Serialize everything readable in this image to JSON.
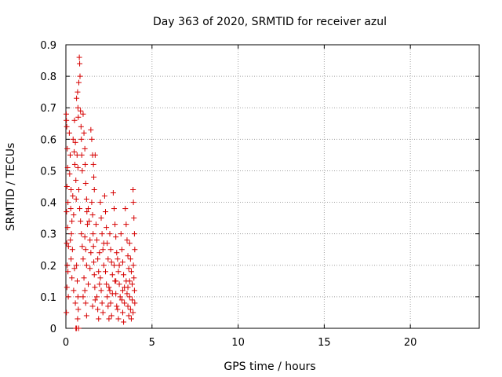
{
  "chart_data": {
    "type": "scatter",
    "title": "Day 363 of 2020, SRMTID for receiver azul",
    "xlabel": "GPS time / hours",
    "ylabel": "SRMTID / TECUs",
    "xlim": [
      0,
      24
    ],
    "ylim": [
      0,
      0.9
    ],
    "xticks": [
      0,
      5,
      10,
      15,
      20
    ],
    "yticks": [
      0,
      0.1,
      0.2,
      0.3,
      0.4,
      0.5,
      0.6,
      0.7,
      0.8,
      0.9
    ],
    "xtick_labels": [
      "0",
      "5",
      "10",
      "15",
      "20"
    ],
    "ytick_labels": [
      "0",
      "0.1",
      "0.2",
      "0.3",
      "0.4",
      "0.5",
      "0.6",
      "0.7",
      "0.8",
      "0.9"
    ],
    "grid": true,
    "marker": "+",
    "color": "#d60000",
    "points": [
      [
        0.02,
        0.68
      ],
      [
        0.03,
        0.66
      ],
      [
        0.05,
        0.64
      ],
      [
        0.08,
        0.57
      ],
      [
        0.1,
        0.51
      ],
      [
        0.06,
        0.45
      ],
      [
        0.12,
        0.4
      ],
      [
        0.04,
        0.37
      ],
      [
        0.1,
        0.32
      ],
      [
        0.05,
        0.27
      ],
      [
        0.15,
        0.26
      ],
      [
        0.08,
        0.2
      ],
      [
        0.12,
        0.18
      ],
      [
        0.06,
        0.13
      ],
      [
        0.14,
        0.1
      ],
      [
        0.03,
        0.05
      ],
      [
        0.2,
        0.62
      ],
      [
        0.25,
        0.55
      ],
      [
        0.22,
        0.49
      ],
      [
        0.3,
        0.44
      ],
      [
        0.28,
        0.38
      ],
      [
        0.35,
        0.34
      ],
      [
        0.32,
        0.3
      ],
      [
        0.26,
        0.28
      ],
      [
        0.38,
        0.25
      ],
      [
        0.3,
        0.22
      ],
      [
        0.4,
        0.42
      ],
      [
        0.45,
        0.36
      ],
      [
        0.42,
        0.6
      ],
      [
        0.48,
        0.56
      ],
      [
        0.5,
        0.66
      ],
      [
        0.55,
        0.59
      ],
      [
        0.52,
        0.52
      ],
      [
        0.58,
        0.47
      ],
      [
        0.6,
        0.41
      ],
      [
        0.62,
        0.73
      ],
      [
        0.68,
        0.75
      ],
      [
        0.7,
        0.7
      ],
      [
        0.72,
        0.67
      ],
      [
        0.75,
        0.78
      ],
      [
        0.78,
        0.86
      ],
      [
        0.8,
        0.84
      ],
      [
        0.82,
        0.8
      ],
      [
        0.85,
        0.69
      ],
      [
        0.88,
        0.64
      ],
      [
        0.9,
        0.6
      ],
      [
        0.92,
        0.55
      ],
      [
        0.95,
        0.5
      ],
      [
        0.65,
        0.55
      ],
      [
        0.7,
        0.51
      ],
      [
        0.75,
        0.44
      ],
      [
        0.8,
        0.38
      ],
      [
        0.85,
        0.34
      ],
      [
        0.9,
        0.3
      ],
      [
        0.95,
        0.26
      ],
      [
        1.0,
        0.22
      ],
      [
        0.62,
        0.2
      ],
      [
        0.66,
        0.15
      ],
      [
        0.7,
        0.1
      ],
      [
        0.72,
        0.06
      ],
      [
        0.68,
        0.03
      ],
      [
        0.58,
        0.0
      ],
      [
        0.62,
        0.0
      ],
      [
        0.74,
        0.0
      ],
      [
        1.0,
        0.68
      ],
      [
        1.05,
        0.62
      ],
      [
        1.1,
        0.57
      ],
      [
        1.12,
        0.52
      ],
      [
        1.15,
        0.46
      ],
      [
        1.2,
        0.41
      ],
      [
        1.22,
        0.37
      ],
      [
        1.25,
        0.33
      ],
      [
        1.1,
        0.29
      ],
      [
        1.15,
        0.25
      ],
      [
        1.2,
        0.2
      ],
      [
        1.05,
        0.16
      ],
      [
        1.1,
        0.12
      ],
      [
        1.15,
        0.08
      ],
      [
        1.2,
        0.04
      ],
      [
        1.0,
        0.1
      ],
      [
        1.3,
        0.38
      ],
      [
        1.35,
        0.34
      ],
      [
        1.4,
        0.28
      ],
      [
        1.45,
        0.24
      ],
      [
        1.5,
        0.6
      ],
      [
        1.55,
        0.55
      ],
      [
        1.6,
        0.52
      ],
      [
        1.62,
        0.48
      ],
      [
        1.65,
        0.44
      ],
      [
        1.5,
        0.4
      ],
      [
        1.55,
        0.36
      ],
      [
        1.58,
        0.3
      ],
      [
        1.6,
        0.26
      ],
      [
        1.62,
        0.21
      ],
      [
        1.65,
        0.17
      ],
      [
        1.68,
        0.13
      ],
      [
        1.7,
        0.09
      ],
      [
        1.55,
        0.07
      ],
      [
        1.45,
        0.63
      ],
      [
        1.7,
        0.55
      ],
      [
        1.75,
        0.33
      ],
      [
        1.8,
        0.28
      ],
      [
        1.85,
        0.22
      ],
      [
        1.9,
        0.18
      ],
      [
        1.95,
        0.14
      ],
      [
        1.8,
        0.1
      ],
      [
        1.85,
        0.06
      ],
      [
        1.9,
        0.03
      ],
      [
        2.0,
        0.4
      ],
      [
        2.05,
        0.35
      ],
      [
        2.1,
        0.3
      ],
      [
        2.15,
        0.25
      ],
      [
        2.2,
        0.2
      ],
      [
        2.0,
        0.16
      ],
      [
        2.05,
        0.12
      ],
      [
        2.1,
        0.08
      ],
      [
        2.15,
        0.05
      ],
      [
        2.25,
        0.42
      ],
      [
        2.3,
        0.37
      ],
      [
        2.35,
        0.32
      ],
      [
        2.4,
        0.27
      ],
      [
        2.45,
        0.22
      ],
      [
        2.3,
        0.18
      ],
      [
        2.35,
        0.14
      ],
      [
        2.4,
        0.1
      ],
      [
        2.45,
        0.07
      ],
      [
        2.5,
        0.03
      ],
      [
        2.55,
        0.3
      ],
      [
        2.6,
        0.25
      ],
      [
        2.65,
        0.21
      ],
      [
        2.7,
        0.17
      ],
      [
        2.55,
        0.12
      ],
      [
        2.6,
        0.08
      ],
      [
        2.65,
        0.04
      ],
      [
        2.75,
        0.43
      ],
      [
        2.8,
        0.38
      ],
      [
        2.85,
        0.33
      ],
      [
        2.9,
        0.29
      ],
      [
        2.95,
        0.24
      ],
      [
        2.8,
        0.2
      ],
      [
        2.85,
        0.15
      ],
      [
        2.9,
        0.11
      ],
      [
        2.95,
        0.07
      ],
      [
        3.0,
        0.22
      ],
      [
        3.05,
        0.18
      ],
      [
        3.1,
        0.14
      ],
      [
        3.15,
        0.1
      ],
      [
        3.0,
        0.06
      ],
      [
        3.05,
        0.03
      ],
      [
        3.2,
        0.3
      ],
      [
        3.25,
        0.25
      ],
      [
        3.3,
        0.21
      ],
      [
        3.35,
        0.17
      ],
      [
        3.4,
        0.13
      ],
      [
        3.25,
        0.09
      ],
      [
        3.3,
        0.05
      ],
      [
        3.35,
        0.02
      ],
      [
        3.45,
        0.38
      ],
      [
        3.5,
        0.33
      ],
      [
        3.55,
        0.28
      ],
      [
        3.6,
        0.23
      ],
      [
        3.65,
        0.19
      ],
      [
        3.5,
        0.15
      ],
      [
        3.55,
        0.11
      ],
      [
        3.6,
        0.07
      ],
      [
        3.65,
        0.04
      ],
      [
        3.7,
        0.27
      ],
      [
        3.75,
        0.22
      ],
      [
        3.8,
        0.18
      ],
      [
        3.85,
        0.14
      ],
      [
        3.7,
        0.1
      ],
      [
        3.75,
        0.06
      ],
      [
        3.8,
        0.03
      ],
      [
        3.9,
        0.44
      ],
      [
        3.92,
        0.4
      ],
      [
        3.95,
        0.35
      ],
      [
        3.98,
        0.3
      ],
      [
        4.0,
        0.25
      ],
      [
        3.92,
        0.2
      ],
      [
        3.95,
        0.16
      ],
      [
        3.98,
        0.12
      ],
      [
        4.0,
        0.08
      ],
      [
        3.9,
        0.05
      ],
      [
        2.2,
        0.27
      ],
      [
        2.5,
        0.13
      ],
      [
        3.1,
        0.2
      ],
      [
        3.4,
        0.08
      ],
      [
        1.95,
        0.24
      ],
      [
        2.7,
        0.11
      ],
      [
        3.6,
        0.13
      ],
      [
        0.45,
        0.12
      ],
      [
        0.5,
        0.19
      ],
      [
        0.55,
        0.08
      ],
      [
        0.35,
        0.16
      ],
      [
        1.3,
        0.14
      ],
      [
        1.4,
        0.19
      ],
      [
        2.9,
        0.15
      ],
      [
        3.3,
        0.12
      ],
      [
        3.7,
        0.15
      ],
      [
        3.85,
        0.09
      ]
    ]
  }
}
